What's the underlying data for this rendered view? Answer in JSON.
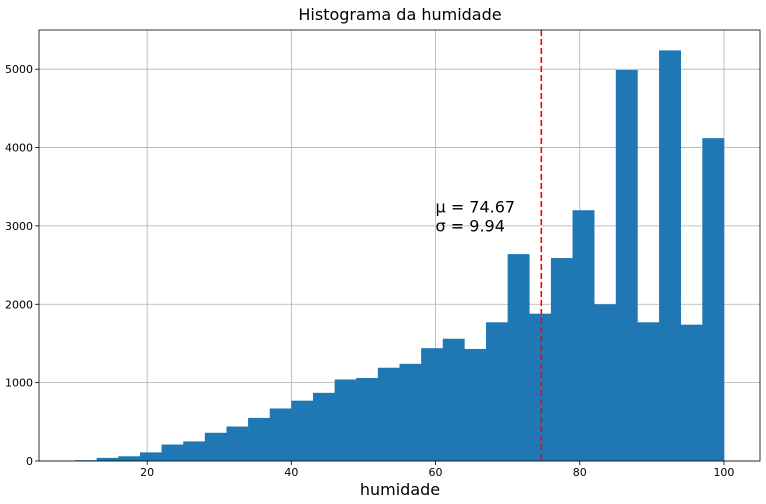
{
  "chart_data": {
    "type": "bar",
    "title": "Histograma da humidade",
    "xlabel": "humidade",
    "ylabel": "",
    "xlim": [
      5,
      105
    ],
    "ylim": [
      0,
      5500
    ],
    "grid": true,
    "bar_color": "#1f77b4",
    "mean_line": {
      "x": 74.67,
      "color": "#ff0000"
    },
    "annotation": {
      "mu_text": "μ = 74.67",
      "sigma_text": "σ = 9.94",
      "x": 60,
      "y": 3250
    },
    "xticks": [
      20,
      40,
      60,
      80,
      100
    ],
    "yticks": [
      0,
      1000,
      2000,
      3000,
      4000,
      5000
    ],
    "bins": [
      {
        "x0": 10.0,
        "x1": 13.0,
        "value": 10
      },
      {
        "x0": 13.0,
        "x1": 16.0,
        "value": 40
      },
      {
        "x0": 16.0,
        "x1": 19.0,
        "value": 60
      },
      {
        "x0": 19.0,
        "x1": 22.0,
        "value": 110
      },
      {
        "x0": 22.0,
        "x1": 25.0,
        "value": 210
      },
      {
        "x0": 25.0,
        "x1": 28.0,
        "value": 250
      },
      {
        "x0": 28.0,
        "x1": 31.0,
        "value": 360
      },
      {
        "x0": 31.0,
        "x1": 34.0,
        "value": 440
      },
      {
        "x0": 34.0,
        "x1": 37.0,
        "value": 550
      },
      {
        "x0": 37.0,
        "x1": 40.0,
        "value": 670
      },
      {
        "x0": 40.0,
        "x1": 43.0,
        "value": 770
      },
      {
        "x0": 43.0,
        "x1": 46.0,
        "value": 870
      },
      {
        "x0": 46.0,
        "x1": 49.0,
        "value": 1040
      },
      {
        "x0": 49.0,
        "x1": 52.0,
        "value": 1060
      },
      {
        "x0": 52.0,
        "x1": 55.0,
        "value": 1190
      },
      {
        "x0": 55.0,
        "x1": 58.0,
        "value": 1240
      },
      {
        "x0": 58.0,
        "x1": 61.0,
        "value": 1440
      },
      {
        "x0": 61.0,
        "x1": 64.0,
        "value": 1560
      },
      {
        "x0": 64.0,
        "x1": 67.0,
        "value": 1430
      },
      {
        "x0": 67.0,
        "x1": 70.0,
        "value": 1770
      },
      {
        "x0": 70.0,
        "x1": 73.0,
        "value": 2640
      },
      {
        "x0": 73.0,
        "x1": 76.0,
        "value": 1880
      },
      {
        "x0": 76.0,
        "x1": 79.0,
        "value": 2590
      },
      {
        "x0": 79.0,
        "x1": 82.0,
        "value": 3200
      },
      {
        "x0": 82.0,
        "x1": 85.0,
        "value": 2000
      },
      {
        "x0": 85.0,
        "x1": 88.0,
        "value": 4990
      },
      {
        "x0": 88.0,
        "x1": 91.0,
        "value": 1770
      },
      {
        "x0": 91.0,
        "x1": 94.0,
        "value": 5240
      },
      {
        "x0": 94.0,
        "x1": 97.0,
        "value": 1740
      },
      {
        "x0": 97.0,
        "x1": 100.0,
        "value": 4120
      }
    ]
  }
}
